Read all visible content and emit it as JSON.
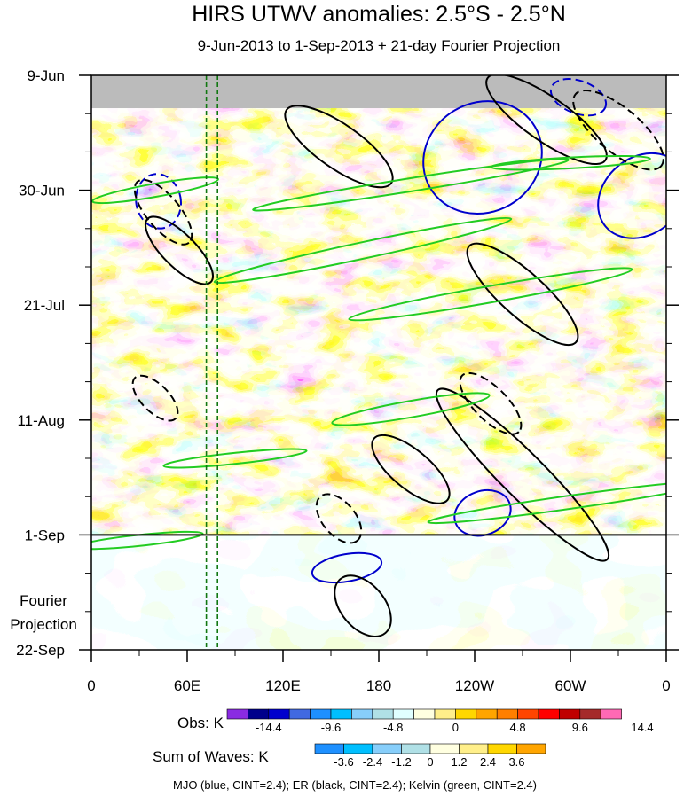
{
  "chart_data": {
    "type": "heatmap",
    "title": "HIRS UTWV anomalies: 2.5°S - 2.5°N",
    "subtitle": "9-Jun-2013 to 1-Sep-2013 + 21-day Fourier Projection",
    "x_tick_labels": [
      "0",
      "60E",
      "120E",
      "180",
      "120W",
      "60W",
      "0"
    ],
    "x_ticks_lon": [
      0,
      60,
      120,
      180,
      240,
      300,
      360
    ],
    "xlim": [
      0,
      360
    ],
    "y_tick_labels": [
      "9-Jun",
      "30-Jun",
      "21-Jul",
      "11-Aug",
      "1-Sep",
      "22-Sep"
    ],
    "y_ticks_day": [
      0,
      21,
      42,
      63,
      84,
      105
    ],
    "ylim_days": [
      0,
      105
    ],
    "observed_end_day": 84,
    "missing_band_days": [
      0,
      6
    ],
    "forecast_label_lines": [
      "Fourier",
      "Projection"
    ],
    "vertical_guides_lon": [
      72,
      79
    ],
    "obs_colorbar": {
      "label": "Obs: K",
      "levels": [
        "-14.4",
        "-9.6",
        "-4.8",
        "0",
        "4.8",
        "9.6",
        "14.4"
      ],
      "colors": [
        "#8a2be2",
        "#00008b",
        "#0000cd",
        "#4169e1",
        "#1e90ff",
        "#00bfff",
        "#87cefa",
        "#b0e0e6",
        "#e0ffff",
        "#ffffe0",
        "#ffef8a",
        "#ffd700",
        "#ffa500",
        "#ff7f00",
        "#ff4500",
        "#ff0000",
        "#c00000",
        "#a52a2a",
        "#ff69b4"
      ]
    },
    "wave_colorbar": {
      "label": "Sum of Waves: K",
      "levels": [
        "-3.6",
        "-2.4",
        "-1.2",
        "0",
        "1.2",
        "2.4",
        "3.6"
      ],
      "colors": [
        "#1e90ff",
        "#00bfff",
        "#87cefa",
        "#b0e0e6",
        "#ffffe0",
        "#ffef8a",
        "#ffd700",
        "#ffa500"
      ]
    },
    "contour_legend": "MJO (blue, CINT=2.4); ER (black, CINT=2.4); Kelvin (green, CINT=2.4)",
    "series": [
      {
        "name": "MJO",
        "color": "#0000cc",
        "cint": 2.4,
        "contours": [
          {
            "lon": 42,
            "day": 23,
            "ax": 14,
            "ay": 5,
            "rot": -10,
            "dash": true
          },
          {
            "lon": 245,
            "day": 15,
            "ax": 38,
            "ay": 10,
            "rot": -30,
            "dash": false
          },
          {
            "lon": 345,
            "day": 22,
            "ax": 30,
            "ay": 7,
            "rot": -40,
            "dash": false
          },
          {
            "lon": 245,
            "day": 80,
            "ax": 18,
            "ay": 4,
            "rot": -20,
            "dash": false
          },
          {
            "lon": 305,
            "day": 4,
            "ax": 18,
            "ay": 3,
            "rot": 20,
            "dash": true
          },
          {
            "lon": 160,
            "day": 90,
            "ax": 22,
            "ay": 2.5,
            "rot": -10,
            "dash": false
          }
        ]
      },
      {
        "name": "ER",
        "color": "#000000",
        "cint": 2.4,
        "contours": [
          {
            "lon": 155,
            "day": 13,
            "ax": 40,
            "ay": 4,
            "rot": 35,
            "dash": false
          },
          {
            "lon": 285,
            "day": 8,
            "ax": 45,
            "ay": 4,
            "rot": 35,
            "dash": false
          },
          {
            "lon": 270,
            "day": 73,
            "ax": 75,
            "ay": 4,
            "rot": 45,
            "dash": false
          },
          {
            "lon": 200,
            "day": 72,
            "ax": 30,
            "ay": 3.5,
            "rot": 40,
            "dash": false
          },
          {
            "lon": 270,
            "day": 40,
            "ax": 45,
            "ay": 4,
            "rot": 42,
            "dash": false
          },
          {
            "lon": 55,
            "day": 32,
            "ax": 28,
            "ay": 3,
            "rot": 45,
            "dash": false
          },
          {
            "lon": 170,
            "day": 97,
            "ax": 22,
            "ay": 4,
            "rot": 50,
            "dash": false
          },
          {
            "lon": 45,
            "day": 25,
            "ax": 25,
            "ay": 3,
            "rot": 50,
            "dash": true
          },
          {
            "lon": 330,
            "day": 10,
            "ax": 35,
            "ay": 4,
            "rot": 40,
            "dash": true
          },
          {
            "lon": 250,
            "day": 60,
            "ax": 25,
            "ay": 3,
            "rot": 45,
            "dash": true
          },
          {
            "lon": 155,
            "day": 81,
            "ax": 18,
            "ay": 3,
            "rot": 50,
            "dash": true
          },
          {
            "lon": 40,
            "day": 59,
            "ax": 18,
            "ay": 2.5,
            "rot": 45,
            "dash": true
          }
        ]
      },
      {
        "name": "Kelvin",
        "color": "#22cc22",
        "cint": 2.4,
        "contours": [
          {
            "lon": 170,
            "day": 32,
            "ax": 95,
            "ay": 1.5,
            "rot": -12,
            "dash": false
          },
          {
            "lon": 250,
            "day": 40,
            "ax": 90,
            "ay": 1.5,
            "rot": -10,
            "dash": false
          },
          {
            "lon": 200,
            "day": 20,
            "ax": 100,
            "ay": 1.2,
            "rot": -9,
            "dash": false
          },
          {
            "lon": 300,
            "day": 78,
            "ax": 90,
            "ay": 1.2,
            "rot": -8,
            "dash": false
          },
          {
            "lon": 90,
            "day": 70,
            "ax": 45,
            "ay": 1,
            "rot": -6,
            "dash": false
          },
          {
            "lon": 200,
            "day": 61,
            "ax": 50,
            "ay": 1.5,
            "rot": -10,
            "dash": false
          },
          {
            "lon": 40,
            "day": 21,
            "ax": 40,
            "ay": 1.2,
            "rot": -10,
            "dash": false
          },
          {
            "lon": 30,
            "day": 85,
            "ax": 40,
            "ay": 1,
            "rot": -6,
            "dash": false
          },
          {
            "lon": 300,
            "day": 16,
            "ax": 50,
            "ay": 1,
            "rot": -3,
            "dash": false
          }
        ]
      }
    ]
  }
}
